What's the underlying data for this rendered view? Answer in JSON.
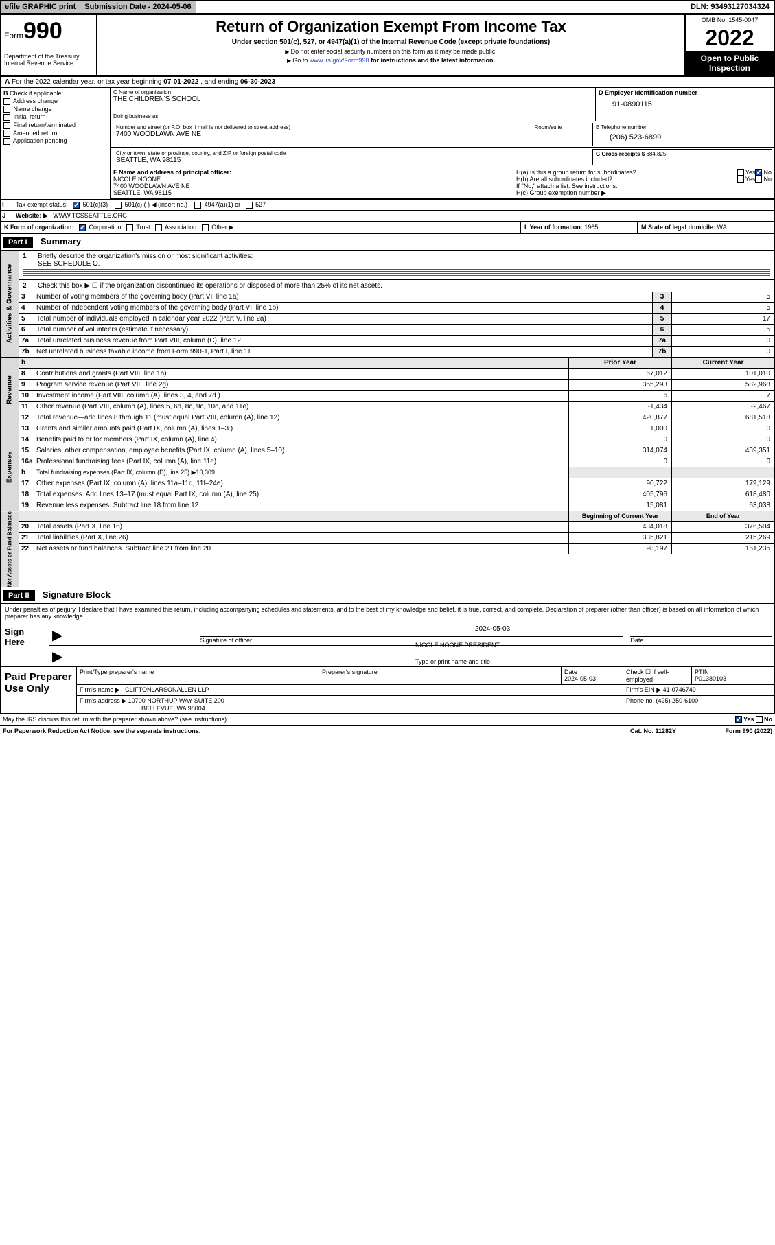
{
  "topbar": {
    "efile": "efile GRAPHIC print",
    "subdate_label": "Submission Date - ",
    "subdate": "2024-05-06",
    "dln_label": "DLN: ",
    "dln": "93493127034324"
  },
  "header": {
    "form_prefix": "Form",
    "form_number": "990",
    "dept": "Department of the Treasury\nInternal Revenue Service",
    "title": "Return of Organization Exempt From Income Tax",
    "sub1": "Under section 501(c), 527, or 4947(a)(1) of the Internal Revenue Code (except private foundations)",
    "sub2": "Do not enter social security numbers on this form as it may be made public.",
    "sub3_pre": "Go to ",
    "sub3_link": "www.irs.gov/Form990",
    "sub3_post": " for instructions and the latest information.",
    "omb": "OMB No. 1545-0047",
    "year": "2022",
    "open": "Open to Public Inspection"
  },
  "line_a": {
    "text_pre": "For the 2022 calendar year, or tax year beginning ",
    "begin": "07-01-2022",
    "mid": " , and ending ",
    "end": "06-30-2023"
  },
  "box_b": {
    "label": "Check if applicable:",
    "opts": [
      "Address change",
      "Name change",
      "Initial return",
      "Final return/terminated",
      "Amended return",
      "Application pending"
    ]
  },
  "box_c": {
    "name_label": "C Name of organization",
    "name": "THE CHILDREN'S SCHOOL",
    "dba_label": "Doing business as",
    "dba": "",
    "street_label": "Number and street (or P.O. box if mail is not delivered to street address)",
    "room_label": "Room/suite",
    "street": "7400 WOODLAWN AVE NE",
    "city_label": "City or town, state or province, country, and ZIP or foreign postal code",
    "city": "SEATTLE, WA  98115"
  },
  "box_d": {
    "label": "D Employer identification number",
    "val": "91-0890115"
  },
  "box_e": {
    "label": "E Telephone number",
    "val": "(206) 523-6899"
  },
  "box_g": {
    "label": "G Gross receipts $ ",
    "val": "684,825"
  },
  "box_f": {
    "label": "F  Name and address of principal officer:",
    "name": "NICOLE NOONE",
    "addr1": "7400 WOODLAWN AVE NE",
    "addr2": "SEATTLE, WA  98115"
  },
  "box_h": {
    "a_label": "H(a)  Is this a group return for subordinates?",
    "b_label": "H(b)  Are all subordinates included?",
    "b_note": "If \"No,\" attach a list. See instructions.",
    "c_label": "H(c)  Group exemption number ▶",
    "yes": "Yes",
    "no": "No"
  },
  "row_i": {
    "label": "Tax-exempt status:",
    "o1": "501(c)(3)",
    "o2": "501(c) (  ) ◀ (insert no.)",
    "o3": "4947(a)(1) or",
    "o4": "527"
  },
  "row_j": {
    "label": "Website: ▶",
    "val": "WWW.TCSSEATTLE.ORG"
  },
  "row_k": {
    "label": "K Form of organization:",
    "o1": "Corporation",
    "o2": "Trust",
    "o3": "Association",
    "o4": "Other ▶"
  },
  "row_l": {
    "label": "L Year of formation: ",
    "val": "1965"
  },
  "row_m": {
    "label": "M State of legal domicile: ",
    "val": "WA"
  },
  "part1": {
    "hdr": "Part I",
    "title": "Summary",
    "q1_label": "Briefly describe the organization's mission or most significant activities:",
    "q1_val": "SEE SCHEDULE O.",
    "q2": "Check this box ▶ ☐  if the organization discontinued its operations or disposed of more than 25% of its net assets.",
    "side_a": "Activities & Governance",
    "side_b": "Revenue",
    "side_c": "Expenses",
    "side_d": "Net Assets or Fund Balances",
    "col_py": "Prior Year",
    "col_cy": "Current Year",
    "col_boy": "Beginning of Current Year",
    "col_eoy": "End of Year",
    "gov_rows": [
      {
        "n": "3",
        "t": "Number of voting members of the governing body (Part VI, line 1a)",
        "v": "5"
      },
      {
        "n": "4",
        "t": "Number of independent voting members of the governing body (Part VI, line 1b)",
        "v": "5"
      },
      {
        "n": "5",
        "t": "Total number of individuals employed in calendar year 2022 (Part V, line 2a)",
        "v": "17"
      },
      {
        "n": "6",
        "t": "Total number of volunteers (estimate if necessary)",
        "v": "5"
      },
      {
        "n": "7a",
        "t": "Total unrelated business revenue from Part VIII, column (C), line 12",
        "v": "0"
      },
      {
        "n": "7b",
        "t": "Net unrelated business taxable income from Form 990-T, Part I, line 11",
        "v": "0"
      }
    ],
    "rev_rows": [
      {
        "n": "8",
        "t": "Contributions and grants (Part VIII, line 1h)",
        "py": "67,012",
        "cy": "101,010"
      },
      {
        "n": "9",
        "t": "Program service revenue (Part VIII, line 2g)",
        "py": "355,293",
        "cy": "582,968"
      },
      {
        "n": "10",
        "t": "Investment income (Part VIII, column (A), lines 3, 4, and 7d )",
        "py": "6",
        "cy": "7"
      },
      {
        "n": "11",
        "t": "Other revenue (Part VIII, column (A), lines 5, 6d, 8c, 9c, 10c, and 11e)",
        "py": "-1,434",
        "cy": "-2,467"
      },
      {
        "n": "12",
        "t": "Total revenue—add lines 8 through 11 (must equal Part VIII, column (A), line 12)",
        "py": "420,877",
        "cy": "681,518"
      }
    ],
    "exp_rows": [
      {
        "n": "13",
        "t": "Grants and similar amounts paid (Part IX, column (A), lines 1–3 )",
        "py": "1,000",
        "cy": "0"
      },
      {
        "n": "14",
        "t": "Benefits paid to or for members (Part IX, column (A), line 4)",
        "py": "0",
        "cy": "0"
      },
      {
        "n": "15",
        "t": "Salaries, other compensation, employee benefits (Part IX, column (A), lines 5–10)",
        "py": "314,074",
        "cy": "439,351"
      },
      {
        "n": "16a",
        "t": "Professional fundraising fees (Part IX, column (A), line 11e)",
        "py": "0",
        "cy": "0"
      },
      {
        "n": "b",
        "t": "Total fundraising expenses (Part IX, column (D), line 25) ▶10,309",
        "py": "",
        "cy": "",
        "noval": true
      },
      {
        "n": "17",
        "t": "Other expenses (Part IX, column (A), lines 11a–11d, 11f–24e)",
        "py": "90,722",
        "cy": "179,129"
      },
      {
        "n": "18",
        "t": "Total expenses. Add lines 13–17 (must equal Part IX, column (A), line 25)",
        "py": "405,796",
        "cy": "618,480"
      },
      {
        "n": "19",
        "t": "Revenue less expenses. Subtract line 18 from line 12",
        "py": "15,081",
        "cy": "63,038"
      }
    ],
    "net_rows": [
      {
        "n": "20",
        "t": "Total assets (Part X, line 16)",
        "py": "434,018",
        "cy": "376,504"
      },
      {
        "n": "21",
        "t": "Total liabilities (Part X, line 26)",
        "py": "335,821",
        "cy": "215,269"
      },
      {
        "n": "22",
        "t": "Net assets or fund balances. Subtract line 21 from line 20",
        "py": "98,197",
        "cy": "161,235"
      }
    ]
  },
  "part2": {
    "hdr": "Part II",
    "title": "Signature Block",
    "decl": "Under penalties of perjury, I declare that I have examined this return, including accompanying schedules and statements, and to the best of my knowledge and belief, it is true, correct, and complete. Declaration of preparer (other than officer) is based on all information of which preparer has any knowledge.",
    "sign_here": "Sign Here",
    "sig_label": "Signature of officer",
    "date_label": "Date",
    "date": "2024-05-03",
    "name_label": "Type or print name and title",
    "name": "NICOLE NOONE PRESIDENT",
    "paid": "Paid Preparer Use Only",
    "p_name_label": "Print/Type preparer's name",
    "p_sig_label": "Preparer's signature",
    "p_date_label": "Date",
    "p_date": "2024-05-03",
    "p_check": "Check ☐ if self-employed",
    "p_ptin_label": "PTIN",
    "p_ptin": "P01380103",
    "firm_name_label": "Firm's name     ▶",
    "firm_name": "CLIFTONLARSONALLEN LLP",
    "firm_ein_label": "Firm's EIN ▶",
    "firm_ein": "41-0746749",
    "firm_addr_label": "Firm's address ▶",
    "firm_addr1": "10700 NORTHUP WAY SUITE 200",
    "firm_addr2": "BELLEVUE, WA  98004",
    "phone_label": "Phone no. ",
    "phone": "(425) 250-6100",
    "discuss": "May the IRS discuss this return with the preparer shown above? (see instructions)",
    "yes": "Yes",
    "no": "No",
    "paperwork": "For Paperwork Reduction Act Notice, see the separate instructions.",
    "cat": "Cat. No. 11282Y",
    "form_foot": "Form 990 (2022)"
  }
}
